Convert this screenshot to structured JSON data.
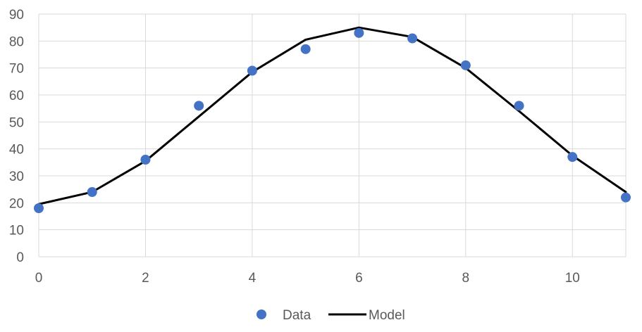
{
  "chart_data": {
    "type": "scatter",
    "title": "",
    "xlabel": "",
    "ylabel": "",
    "xlim": [
      0,
      11
    ],
    "ylim": [
      0,
      90
    ],
    "x_ticks": [
      0,
      2,
      4,
      6,
      8,
      10
    ],
    "y_ticks": [
      0,
      10,
      20,
      30,
      40,
      50,
      60,
      70,
      80,
      90
    ],
    "grid": true,
    "legend_position": "bottom",
    "series": [
      {
        "name": "Data",
        "kind": "markers",
        "color": "#4472C4",
        "x": [
          0,
          1,
          2,
          3,
          4,
          5,
          6,
          7,
          8,
          9,
          10,
          11
        ],
        "y": [
          18,
          24,
          36,
          56,
          69,
          77,
          83,
          81,
          71,
          56,
          37,
          22
        ]
      },
      {
        "name": "Model",
        "kind": "line",
        "color": "#000000",
        "x": [
          0,
          1,
          2,
          3,
          4,
          5,
          6,
          7,
          8,
          9,
          10,
          11
        ],
        "y": [
          19.5,
          24,
          35.5,
          52,
          68.5,
          80.5,
          85,
          81.5,
          70,
          54,
          37.5,
          24
        ]
      }
    ]
  }
}
